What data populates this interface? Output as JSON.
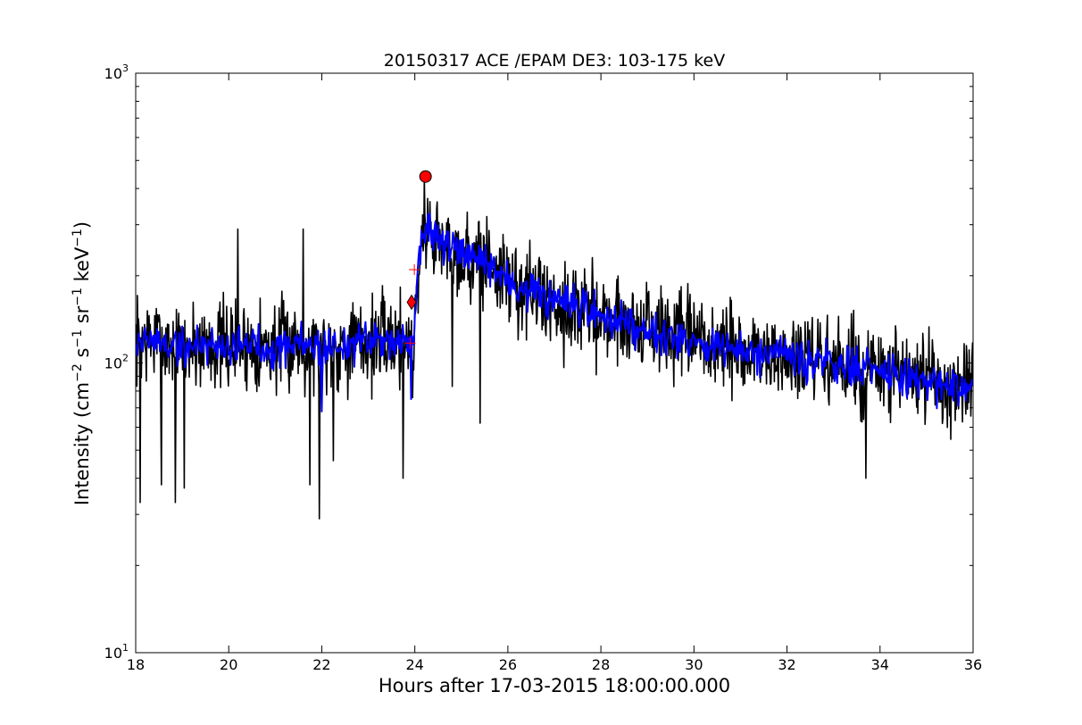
{
  "chart_data": {
    "type": "line",
    "title": "20150317 ACE /EPAM DE3: 103-175 keV",
    "xlabel": "Hours after 17-03-2015 18:00:00.000",
    "ylabel": {
      "parts": [
        {
          "t": "Intensity (cm",
          "sup": false
        },
        {
          "t": "−2",
          "sup": true
        },
        {
          "t": " s",
          "sup": false
        },
        {
          "t": "−1",
          "sup": true
        },
        {
          "t": " sr",
          "sup": false
        },
        {
          "t": "−1",
          "sup": true
        },
        {
          "t": " keV",
          "sup": false
        },
        {
          "t": "−1",
          "sup": true
        },
        {
          "t": ")",
          "sup": false
        }
      ]
    },
    "xlim": [
      18,
      36
    ],
    "ylim": [
      10,
      1000
    ],
    "yscale": "log",
    "xticks": [
      {
        "v": 18,
        "label": "18"
      },
      {
        "v": 20,
        "label": "20"
      },
      {
        "v": 22,
        "label": "22"
      },
      {
        "v": 24,
        "label": "24"
      },
      {
        "v": 26,
        "label": "26"
      },
      {
        "v": 28,
        "label": "28"
      },
      {
        "v": 30,
        "label": "30"
      },
      {
        "v": 32,
        "label": "32"
      },
      {
        "v": 34,
        "label": "34"
      },
      {
        "v": 36,
        "label": "36"
      }
    ],
    "yticks": [
      {
        "v": 10,
        "base": "10",
        "exp": "1"
      },
      {
        "v": 100,
        "base": "10",
        "exp": "2"
      },
      {
        "v": 1000,
        "base": "10",
        "exp": "3"
      }
    ],
    "grid": false,
    "colors": {
      "raw": "#000000",
      "smoothed": "#0000ff",
      "marker": "#ff0000",
      "axis": "#000000"
    },
    "series": [
      {
        "style": "black-line",
        "x": [
          18.0,
          18.5,
          19.0,
          19.5,
          20.0,
          20.5,
          21.0,
          21.5,
          22.0,
          22.5,
          23.0,
          23.5,
          23.85,
          23.95,
          24.05,
          24.15,
          24.25,
          24.4,
          24.6,
          24.8,
          25.0,
          25.2,
          25.4,
          25.6,
          25.8,
          26.0,
          26.5,
          27.0,
          27.5,
          28.0,
          28.5,
          29.0,
          29.5,
          30.0,
          30.5,
          31.0,
          31.5,
          32.0,
          32.5,
          33.0,
          33.5,
          34.0,
          34.5,
          35.0,
          35.5,
          36.0
        ],
        "y": [
          120,
          118,
          112,
          117,
          114,
          116,
          113,
          118,
          112,
          116,
          117,
          122,
          120,
          112,
          185,
          270,
          295,
          280,
          255,
          245,
          232,
          228,
          222,
          218,
          205,
          190,
          175,
          162,
          152,
          146,
          139,
          132,
          125,
          119,
          113,
          109,
          106,
          103,
          101,
          99,
          96,
          92,
          89,
          86,
          84,
          82
        ],
        "noise": 0.18,
        "seed": 7,
        "extremes": [
          [
            18.1,
            33
          ],
          [
            18.55,
            38
          ],
          [
            18.85,
            33
          ],
          [
            19.05,
            37
          ],
          [
            20.2,
            290
          ],
          [
            21.6,
            290
          ],
          [
            21.75,
            38
          ],
          [
            21.95,
            29
          ],
          [
            22.25,
            46
          ],
          [
            23.75,
            40
          ],
          [
            23.95,
            76
          ],
          [
            24.2,
            440
          ],
          [
            24.8,
            83
          ],
          [
            25.4,
            62
          ],
          [
            25.55,
            320
          ],
          [
            33.7,
            40
          ]
        ]
      },
      {
        "style": "blue-line",
        "x": [
          18.0,
          18.5,
          19.0,
          19.5,
          20.0,
          20.5,
          21.0,
          21.5,
          22.0,
          22.5,
          23.0,
          23.5,
          23.85,
          23.95,
          24.05,
          24.15,
          24.25,
          24.4,
          24.6,
          24.8,
          25.0,
          25.2,
          25.4,
          25.6,
          25.8,
          26.0,
          26.5,
          27.0,
          27.5,
          28.0,
          28.5,
          29.0,
          29.5,
          30.0,
          30.5,
          31.0,
          31.5,
          32.0,
          32.5,
          33.0,
          33.5,
          34.0,
          34.5,
          35.0,
          35.5,
          36.0
        ],
        "y": [
          120,
          118,
          112,
          117,
          114,
          116,
          113,
          118,
          112,
          116,
          117,
          122,
          120,
          112,
          185,
          270,
          295,
          280,
          255,
          245,
          232,
          228,
          222,
          218,
          205,
          190,
          175,
          162,
          152,
          146,
          139,
          132,
          125,
          119,
          113,
          109,
          106,
          103,
          101,
          99,
          96,
          92,
          89,
          86,
          84,
          82
        ],
        "noise": 0.08,
        "seed": 19,
        "extremes": [
          [
            23.92,
            75
          ],
          [
            22.0,
            68
          ]
        ]
      }
    ],
    "markers": [
      {
        "shape": "circle",
        "x": 24.23,
        "y": 440
      },
      {
        "shape": "diamond",
        "x": 23.93,
        "y": 162
      },
      {
        "shape": "plus",
        "x": 23.99,
        "y": 210
      },
      {
        "shape": "plus",
        "x": 23.9,
        "y": 117
      }
    ]
  }
}
